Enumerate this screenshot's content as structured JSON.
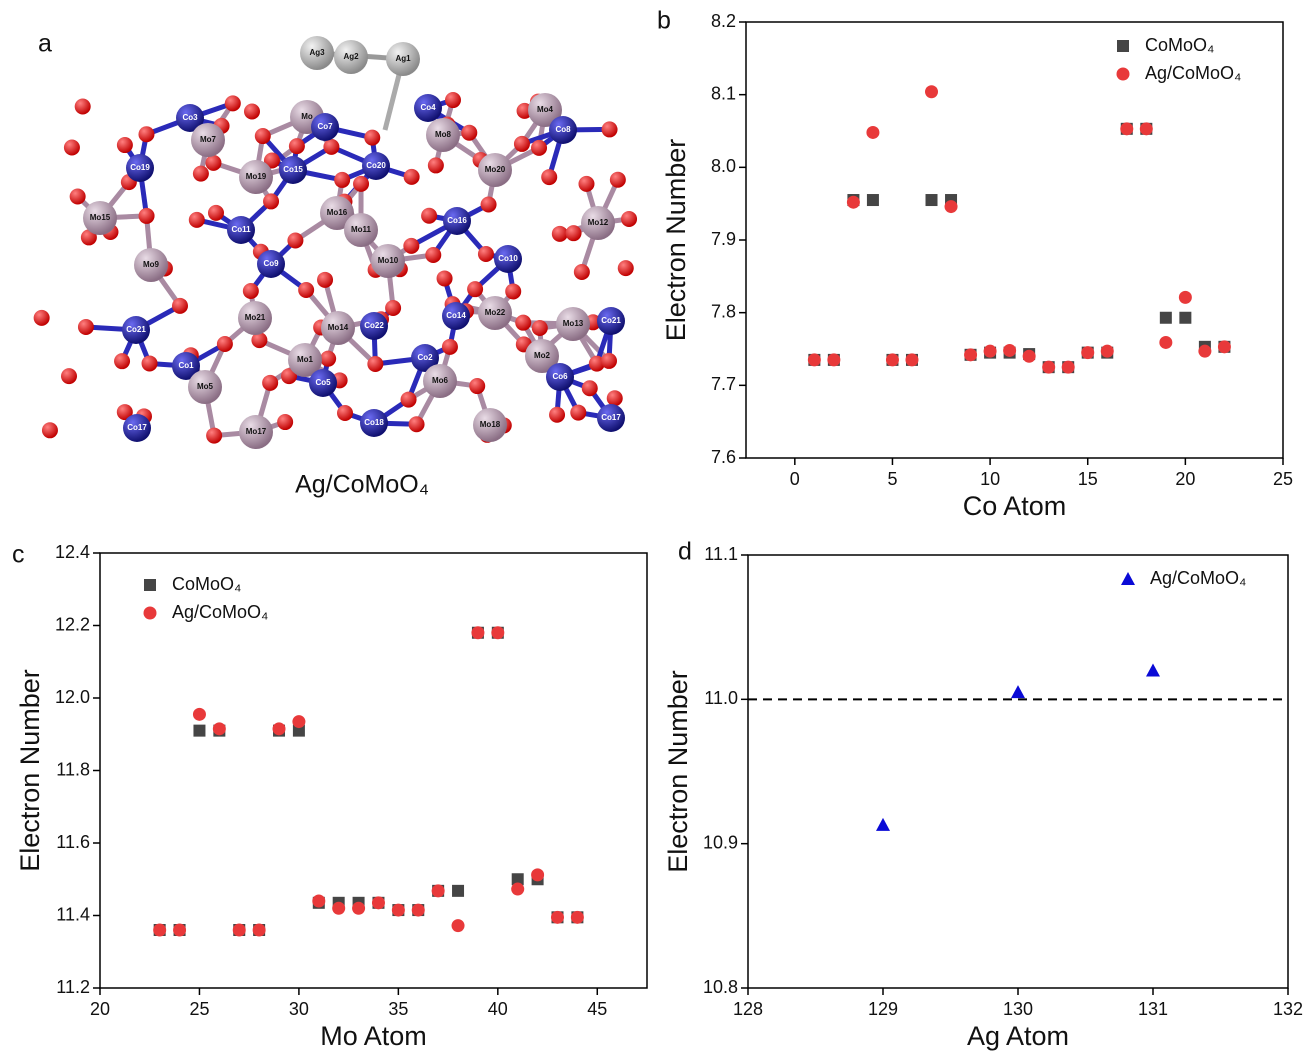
{
  "structure": {
    "panel_label": "a",
    "caption": "Ag/CoMoO₄",
    "atoms": [
      "Ag3",
      "Ag2",
      "Ag1",
      "Co3",
      "Mo",
      "Co7",
      "Co4",
      "Mo4",
      "Mo7",
      "Co8",
      "Mo8",
      "Co19",
      "Mo19",
      "Co15",
      "Co20",
      "Mo20",
      "Mo16",
      "Mo15",
      "Co11",
      "Mo11",
      "Co16",
      "Mo12",
      "Mo9",
      "Co9",
      "Mo10",
      "Co10",
      "Co21",
      "Mo21",
      "Mo14",
      "Co22",
      "Co14",
      "Mo22",
      "Mo13",
      "Co21",
      "Co1",
      "Mo1",
      "Co2",
      "Mo2",
      "Mo5",
      "Co5",
      "Mo6",
      "Co6",
      "Co17",
      "Mo17",
      "Co18",
      "Mo18",
      "Co17"
    ]
  },
  "chart_data": [
    {
      "type": "scatter",
      "panel_label": "b",
      "x_label": "Co Atom",
      "y_label": "Electron Number",
      "x": [
        1,
        2,
        3,
        4,
        5,
        6,
        7,
        8,
        9,
        10,
        11,
        12,
        13,
        14,
        15,
        16,
        17,
        18,
        19,
        20,
        21,
        22
      ],
      "series": [
        {
          "name": "CoMoO₄",
          "color": "#454545",
          "marker": "square",
          "values": [
            7.735,
            7.735,
            7.955,
            7.955,
            7.735,
            7.735,
            7.955,
            7.955,
            7.742,
            7.745,
            7.745,
            7.743,
            7.725,
            7.725,
            7.745,
            7.745,
            8.053,
            8.053,
            7.793,
            7.793,
            7.753,
            7.753
          ]
        },
        {
          "name": "Ag/CoMoO₄",
          "color": "#e8393a",
          "marker": "circle",
          "values": [
            7.735,
            7.735,
            7.952,
            8.048,
            7.735,
            7.735,
            8.104,
            7.946,
            7.742,
            7.747,
            7.748,
            7.74,
            7.725,
            7.725,
            7.745,
            7.747,
            8.053,
            8.053,
            7.759,
            7.821,
            7.747,
            7.753
          ]
        }
      ],
      "xlim": [
        -2.5,
        25
      ],
      "xticks": [
        0,
        5,
        10,
        15,
        20,
        25
      ],
      "ylim": [
        7.6,
        8.2
      ],
      "yticks": [
        7.6,
        7.7,
        7.8,
        7.9,
        {
          "value": 8,
          "label": "8.0"
        },
        8.1,
        8.2
      ],
      "legend": "upper right"
    },
    {
      "type": "scatter",
      "panel_label": "c",
      "x_label": "Mo Atom",
      "y_label": "Electron Number",
      "x": [
        23,
        24,
        25,
        26,
        27,
        28,
        29,
        30,
        31,
        32,
        33,
        34,
        35,
        36,
        37,
        38,
        39,
        40,
        41,
        42,
        43,
        44
      ],
      "series": [
        {
          "name": "CoMoO₄",
          "color": "#454545",
          "marker": "square",
          "values": [
            11.36,
            11.36,
            11.91,
            11.91,
            11.36,
            11.36,
            11.91,
            11.91,
            11.435,
            11.435,
            11.435,
            11.435,
            11.415,
            11.415,
            11.468,
            11.468,
            12.18,
            12.18,
            11.5,
            11.5,
            11.395,
            11.395
          ]
        },
        {
          "name": "Ag/CoMoO₄",
          "color": "#e8393a",
          "marker": "circle",
          "values": [
            11.36,
            11.36,
            11.955,
            11.915,
            11.36,
            11.36,
            11.915,
            11.935,
            11.44,
            11.42,
            11.42,
            11.435,
            11.415,
            11.415,
            11.468,
            11.372,
            12.18,
            12.18,
            11.473,
            11.512,
            11.395,
            11.395
          ]
        }
      ],
      "xlim": [
        20,
        47.5
      ],
      "xticks": [
        20,
        25,
        30,
        35,
        40,
        45
      ],
      "ylim": [
        11.2,
        12.4
      ],
      "yticks": [
        11.2,
        11.4,
        11.6,
        11.8,
        {
          "value": 12,
          "label": "12.0"
        },
        12.2,
        12.4
      ],
      "legend": "upper left"
    },
    {
      "type": "scatter",
      "panel_label": "d",
      "x_label": "Ag Atom",
      "y_label": "Electron Number",
      "x": [
        129,
        130,
        131
      ],
      "series": [
        {
          "name": "Ag/CoMoO₄",
          "color": "#0a0ad6",
          "marker": "triangle",
          "values": [
            10.913,
            11.005,
            11.02
          ]
        }
      ],
      "xlim": [
        128,
        132
      ],
      "xticks": [
        128,
        129,
        130,
        131,
        132
      ],
      "ylim": [
        10.8,
        11.1
      ],
      "yticks": [
        10.8,
        10.9,
        {
          "value": 11,
          "label": "11.0"
        },
        11.1
      ],
      "reference_line": {
        "y": 11,
        "style": "dashed"
      },
      "legend": "upper right"
    }
  ]
}
